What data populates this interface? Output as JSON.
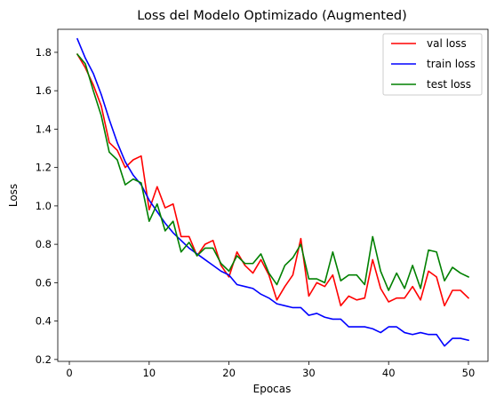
{
  "chart_data": {
    "type": "line",
    "title": "Loss del Modelo Optimizado (Augmented)",
    "xlabel": "Epocas",
    "ylabel": "Loss",
    "xlim": [
      -1.45,
      52.45
    ],
    "ylim": [
      0.19,
      1.92
    ],
    "xticks": [
      0,
      10,
      20,
      30,
      40,
      50
    ],
    "yticks": [
      0.2,
      0.4,
      0.6,
      0.8,
      1.0,
      1.2,
      1.4,
      1.6,
      1.8
    ],
    "ytick_labels": [
      "0.2",
      "0.4",
      "0.6",
      "0.8",
      "1.0",
      "1.2",
      "1.4",
      "1.6",
      "1.8"
    ],
    "grid": false,
    "legend_position": "top-right",
    "x": [
      1,
      2,
      3,
      4,
      5,
      6,
      7,
      8,
      9,
      10,
      11,
      12,
      13,
      14,
      15,
      16,
      17,
      18,
      19,
      20,
      21,
      22,
      23,
      24,
      25,
      26,
      27,
      28,
      29,
      30,
      31,
      32,
      33,
      34,
      35,
      36,
      37,
      38,
      39,
      40,
      41,
      42,
      43,
      44,
      45,
      46,
      47,
      48,
      49,
      50
    ],
    "series": [
      {
        "name": "val loss",
        "color": "#ff0000",
        "values": [
          1.79,
          1.72,
          1.63,
          1.52,
          1.33,
          1.29,
          1.2,
          1.24,
          1.26,
          0.98,
          1.1,
          0.99,
          1.01,
          0.84,
          0.84,
          0.74,
          0.8,
          0.82,
          0.69,
          0.63,
          0.76,
          0.69,
          0.65,
          0.72,
          0.64,
          0.51,
          0.58,
          0.64,
          0.83,
          0.53,
          0.6,
          0.58,
          0.64,
          0.48,
          0.53,
          0.51,
          0.52,
          0.72,
          0.57,
          0.5,
          0.52,
          0.52,
          0.58,
          0.51,
          0.66,
          0.63,
          0.48,
          0.56,
          0.56,
          0.52
        ]
      },
      {
        "name": "train loss",
        "color": "#0000ff",
        "values": [
          1.87,
          1.77,
          1.69,
          1.58,
          1.45,
          1.33,
          1.23,
          1.16,
          1.11,
          1.03,
          0.97,
          0.91,
          0.86,
          0.82,
          0.78,
          0.75,
          0.72,
          0.69,
          0.66,
          0.64,
          0.59,
          0.58,
          0.57,
          0.54,
          0.52,
          0.49,
          0.48,
          0.47,
          0.47,
          0.43,
          0.44,
          0.42,
          0.41,
          0.41,
          0.37,
          0.37,
          0.37,
          0.36,
          0.34,
          0.37,
          0.37,
          0.34,
          0.33,
          0.34,
          0.33,
          0.33,
          0.27,
          0.31,
          0.31,
          0.3
        ]
      },
      {
        "name": "test loss",
        "color": "#008000",
        "values": [
          1.79,
          1.74,
          1.6,
          1.47,
          1.28,
          1.24,
          1.11,
          1.14,
          1.12,
          0.92,
          1.01,
          0.87,
          0.92,
          0.76,
          0.81,
          0.74,
          0.78,
          0.78,
          0.7,
          0.66,
          0.74,
          0.7,
          0.7,
          0.75,
          0.65,
          0.59,
          0.69,
          0.73,
          0.8,
          0.62,
          0.62,
          0.6,
          0.76,
          0.61,
          0.64,
          0.64,
          0.59,
          0.84,
          0.66,
          0.56,
          0.65,
          0.57,
          0.69,
          0.57,
          0.77,
          0.76,
          0.61,
          0.68,
          0.65,
          0.63
        ]
      }
    ]
  }
}
